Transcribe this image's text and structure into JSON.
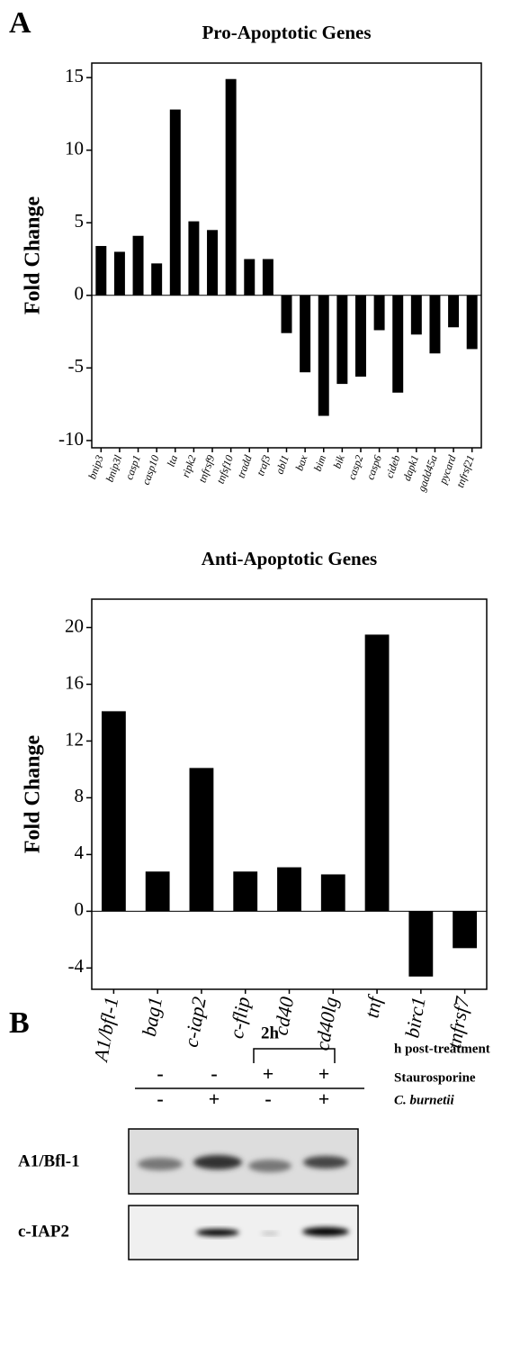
{
  "chart_data": [
    {
      "type": "bar",
      "title": "Pro-Apoptotic Genes",
      "y_label": "Fold Change",
      "categories": [
        "bnip3",
        "bnip3l",
        "casp1",
        "casp10",
        "lta",
        "ripk2",
        "tnfrsf9",
        "tnfsf10",
        "tradd",
        "traf3",
        "abl1",
        "bax",
        "bim",
        "bik",
        "casp2",
        "casp6",
        "cideb",
        "dapk1",
        "gadd45a",
        "pycard",
        "tnfrsf21"
      ],
      "values": [
        3.4,
        3.0,
        4.1,
        2.2,
        12.8,
        5.1,
        4.5,
        14.9,
        2.5,
        2.5,
        -2.6,
        -5.3,
        -8.3,
        -6.1,
        -5.6,
        -2.4,
        -6.7,
        -2.7,
        -4.0,
        -2.2,
        -3.7
      ],
      "color": "#000000",
      "ylim": [
        -10.5,
        16
      ],
      "yticks": [
        -10,
        -5,
        0,
        5,
        10,
        15
      ]
    },
    {
      "type": "bar",
      "title": "Anti-Apoptotic Genes",
      "y_label": "Fold Change",
      "categories": [
        "A1/bfl-1",
        "bag1",
        "c-iap2",
        "c-flip",
        "cd40",
        "cd40lg",
        "tnf",
        "birc1",
        "tnfrsf7"
      ],
      "values": [
        14.1,
        2.8,
        10.1,
        2.8,
        3.1,
        2.6,
        19.5,
        -4.6,
        -2.6
      ],
      "color": "#000000",
      "ylim": [
        -5.5,
        22
      ],
      "yticks": [
        -4,
        0,
        4,
        8,
        12,
        16,
        20
      ]
    }
  ],
  "figure": {
    "panel_a": "A",
    "panel_b": "B",
    "blot": {
      "time": "2h",
      "time_label": "h post-treatment",
      "conditions": [
        {
          "name": "Staurosporine",
          "signs": [
            "-",
            "-",
            "+",
            "+"
          ]
        },
        {
          "name": "C. burnetii",
          "signs": [
            "-",
            "+",
            "-",
            "+"
          ]
        }
      ],
      "rows": [
        "A1/Bfl-1",
        "c-IAP2"
      ]
    }
  }
}
